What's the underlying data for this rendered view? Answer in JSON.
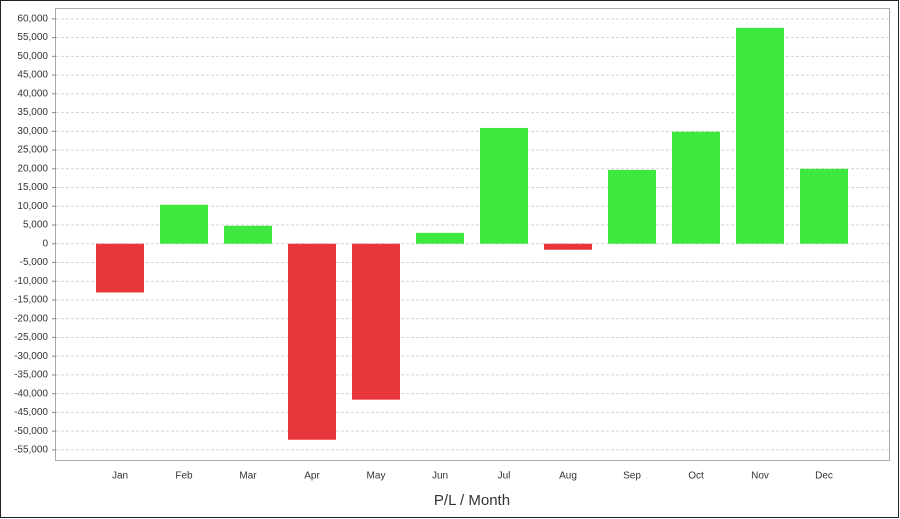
{
  "chart_data": {
    "type": "bar",
    "x_label": "P/L / Month",
    "categories": [
      "Jan",
      "Feb",
      "Mar",
      "Apr",
      "May",
      "Jun",
      "Jul",
      "Aug",
      "Sep",
      "Oct",
      "Nov",
      "Dec"
    ],
    "values": [
      -13000,
      10400,
      4800,
      -52300,
      -41600,
      2900,
      30900,
      -1600,
      19700,
      29900,
      57600,
      20000
    ],
    "positive_color": "#3fe83f",
    "negative_color": "#e8373b",
    "ylim": [
      -57700,
      62900
    ],
    "yticks": [
      {
        "value": -55000,
        "label": "-55,000"
      },
      {
        "value": -50000,
        "label": "-50,000"
      },
      {
        "value": -45000,
        "label": "-45,000"
      },
      {
        "value": -40000,
        "label": "-40,000"
      },
      {
        "value": -35000,
        "label": "-35,000"
      },
      {
        "value": -30000,
        "label": "-30,000"
      },
      {
        "value": -25000,
        "label": "-25,000"
      },
      {
        "value": -20000,
        "label": "-20,000"
      },
      {
        "value": -15000,
        "label": "-15,000"
      },
      {
        "value": -10000,
        "label": "-10,000"
      },
      {
        "value": -5000,
        "label": "-5,000"
      },
      0,
      {
        "value": 5000,
        "label": "5,000"
      },
      {
        "value": 10000,
        "label": "10,000"
      },
      {
        "value": 15000,
        "label": "15,000"
      },
      {
        "value": 20000,
        "label": "20,000"
      },
      {
        "value": 25000,
        "label": "25,000"
      },
      {
        "value": 30000,
        "label": "30,000"
      },
      {
        "value": 35000,
        "label": "35,000"
      },
      {
        "value": 40000,
        "label": "40,000"
      },
      {
        "value": 45000,
        "label": "45,000"
      },
      {
        "value": 50000,
        "label": "50,000"
      },
      {
        "value": 55000,
        "label": "55,000"
      },
      {
        "value": 60000,
        "label": "60,000"
      }
    ],
    "grid": true
  }
}
